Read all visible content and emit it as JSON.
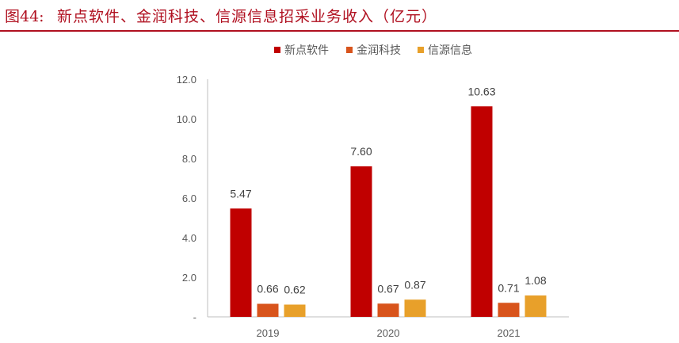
{
  "figure": {
    "number": "图44:",
    "title": "新点软件、金润科技、信源信息招采业务收入（亿元）",
    "accent_color": "#b01020"
  },
  "chart_data": {
    "type": "bar",
    "categories": [
      "2019",
      "2020",
      "2021"
    ],
    "series": [
      {
        "name": "新点软件",
        "color": "#c00000",
        "values": [
          5.47,
          7.6,
          10.63
        ],
        "labels": [
          "5.47",
          "7.60",
          "10.63"
        ]
      },
      {
        "name": "金润科技",
        "color": "#d8541c",
        "values": [
          0.66,
          0.67,
          0.71
        ],
        "labels": [
          "0.66",
          "0.67",
          "0.71"
        ]
      },
      {
        "name": "信源信息",
        "color": "#e8a02a",
        "values": [
          0.62,
          0.87,
          1.08
        ],
        "labels": [
          "0.62",
          "0.87",
          "1.08"
        ]
      }
    ],
    "yticks": [
      "-",
      "2.0",
      "4.0",
      "6.0",
      "8.0",
      "10.0",
      "12.0"
    ],
    "ylim": [
      0,
      12
    ],
    "grid": false,
    "legend_position": "top"
  }
}
